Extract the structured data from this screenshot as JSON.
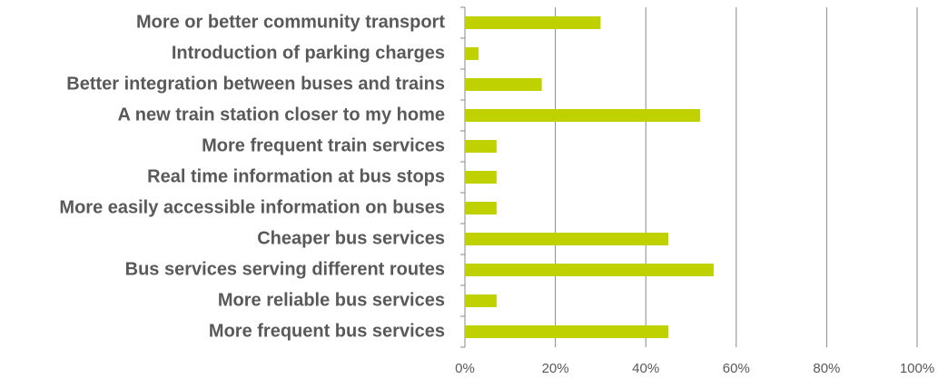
{
  "chart_data": {
    "type": "barh",
    "categories": [
      "More or better community transport",
      "Introduction of parking charges",
      "Better integration between buses and trains",
      "A new train station closer to my home",
      "More frequent train services",
      "Real time information at bus stops",
      "More easily accessible information on buses",
      "Cheaper bus services",
      "Bus services serving different routes",
      "More reliable bus services",
      "More frequent bus services"
    ],
    "values": [
      30,
      3,
      17,
      52,
      7,
      7,
      7,
      45,
      55,
      7,
      45
    ],
    "color": "#bfd200",
    "xlim": [
      0,
      100
    ],
    "xticks": [
      {
        "value": 0,
        "label": "0%"
      },
      {
        "value": 20,
        "label": "20%"
      },
      {
        "value": 40,
        "label": "40%"
      },
      {
        "value": 60,
        "label": "60%"
      },
      {
        "value": 80,
        "label": "80%"
      },
      {
        "value": 100,
        "label": "100%"
      }
    ],
    "grid": true
  }
}
